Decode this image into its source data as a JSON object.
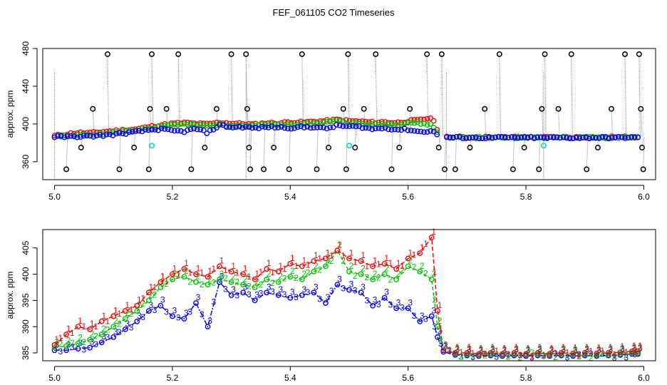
{
  "title": "FEF_061105  CO2 Timeseries",
  "colors": {
    "series1": "#ff0000",
    "series2": "#00c000",
    "series3": "#0000ff",
    "black": "#000000",
    "cyan": "#00d8d8",
    "trace": "#888888"
  },
  "chart_data": [
    {
      "type": "scatter",
      "name": "top-panel",
      "ylabel": "approx. ppm",
      "xlabel": "",
      "xlim": [
        4.98,
        6.02
      ],
      "ylim": [
        341,
        480
      ],
      "x_ticks": [
        5.0,
        5.2,
        5.4,
        5.6,
        5.8,
        6.0
      ],
      "x_tick_labels": [
        "5.0",
        "5.2",
        "5.4",
        "5.6",
        "5.8",
        "6.0"
      ],
      "y_ticks": [
        360,
        400,
        440,
        480
      ],
      "y_tick_labels": [
        "360",
        "400",
        "440",
        "480"
      ],
      "series": [
        {
          "name": "black-outliers",
          "color": "black",
          "x": [
            5.02,
            5.045,
            5.065,
            5.09,
            5.11,
            5.135,
            5.16,
            5.162,
            5.165,
            5.19,
            5.21,
            5.232,
            5.255,
            5.275,
            5.3,
            5.325,
            5.327,
            5.33,
            5.332,
            5.355,
            5.372,
            5.398,
            5.42,
            5.445,
            5.465,
            5.49,
            5.495,
            5.498,
            5.51,
            5.525,
            5.545,
            5.572,
            5.585,
            5.603,
            5.632,
            5.652,
            5.657,
            5.662,
            5.68,
            5.705,
            5.73,
            5.755,
            5.778,
            5.797,
            5.822,
            5.827,
            5.832,
            5.855,
            5.877,
            5.903,
            5.922,
            5.945,
            5.968,
            5.992,
            5.995,
            5.997,
            5.999
          ],
          "y": [
            352,
            375,
            416,
            474,
            352,
            375,
            352,
            416,
            474,
            416,
            474,
            352,
            375,
            416,
            474,
            474,
            416,
            375,
            352,
            352,
            375,
            352,
            474,
            352,
            375,
            416,
            352,
            474,
            375,
            416,
            474,
            352,
            375,
            416,
            474,
            375,
            474,
            352,
            352,
            375,
            416,
            474,
            352,
            375,
            352,
            416,
            474,
            416,
            474,
            352,
            375,
            416,
            474,
            474,
            416,
            375,
            352
          ]
        },
        {
          "name": "cyan-points",
          "color": "cyan",
          "x": [
            5.165,
            5.5,
            5.83
          ],
          "y": [
            377,
            377,
            377
          ]
        }
      ]
    },
    {
      "type": "line",
      "name": "bottom-panel",
      "ylabel": "approx. ppm",
      "xlabel": "",
      "xlim": [
        4.98,
        6.02
      ],
      "ylim": [
        383.5,
        408.5
      ],
      "x_ticks": [
        5.0,
        5.2,
        5.4,
        5.6,
        5.8,
        6.0
      ],
      "x_tick_labels": [
        "5.0",
        "5.2",
        "5.4",
        "5.6",
        "5.8",
        "6.0"
      ],
      "y_ticks": [
        385,
        390,
        395,
        400,
        405
      ],
      "y_tick_labels": [
        "385",
        "390",
        "395",
        "400",
        "405"
      ],
      "series": [
        {
          "name": "1",
          "label": "1",
          "color": "series1",
          "x": [
            5.0,
            5.02,
            5.04,
            5.06,
            5.08,
            5.1,
            5.12,
            5.14,
            5.16,
            5.18,
            5.2,
            5.22,
            5.24,
            5.26,
            5.28,
            5.3,
            5.32,
            5.34,
            5.36,
            5.38,
            5.4,
            5.42,
            5.44,
            5.46,
            5.48,
            5.5,
            5.52,
            5.54,
            5.56,
            5.58,
            5.6,
            5.62,
            5.64,
            5.65,
            5.66,
            5.68,
            5.7,
            5.72,
            5.74,
            5.76,
            5.78,
            5.8,
            5.82,
            5.84,
            5.86,
            5.88,
            5.9,
            5.92,
            5.94,
            5.96,
            5.98,
            5.99
          ],
          "y": [
            386.5,
            388.5,
            390.0,
            389.5,
            391.0,
            392.0,
            393.0,
            394.0,
            396.5,
            398.5,
            400.0,
            401.0,
            400.0,
            399.5,
            401.5,
            400.5,
            400.0,
            399.0,
            401.0,
            400.5,
            402.0,
            401.5,
            402.5,
            403.0,
            404.5,
            403.0,
            402.5,
            401.5,
            402.0,
            401.0,
            403.0,
            404.0,
            407.0,
            393.0,
            385.5,
            385.0,
            385.0,
            384.8,
            385.0,
            384.8,
            385.0,
            384.8,
            385.0,
            384.8,
            385.0,
            384.9,
            385.0,
            384.9,
            385.0,
            385.1,
            385.3,
            385.3
          ]
        },
        {
          "name": "2",
          "label": "2",
          "color": "series2",
          "x": [
            5.0,
            5.02,
            5.04,
            5.06,
            5.08,
            5.1,
            5.12,
            5.14,
            5.16,
            5.18,
            5.2,
            5.22,
            5.24,
            5.26,
            5.28,
            5.3,
            5.32,
            5.34,
            5.36,
            5.38,
            5.4,
            5.42,
            5.44,
            5.46,
            5.48,
            5.5,
            5.52,
            5.54,
            5.56,
            5.58,
            5.6,
            5.62,
            5.64,
            5.65,
            5.66,
            5.68,
            5.7,
            5.72,
            5.74,
            5.76,
            5.78,
            5.8,
            5.82,
            5.84,
            5.86,
            5.88,
            5.9,
            5.92,
            5.94,
            5.96,
            5.98,
            5.99
          ],
          "y": [
            386.0,
            386.3,
            386.8,
            387.5,
            388.5,
            390.0,
            391.5,
            393.0,
            395.0,
            397.5,
            399.0,
            399.5,
            398.5,
            398.0,
            399.0,
            398.5,
            398.0,
            397.5,
            399.0,
            398.5,
            399.5,
            399.0,
            400.5,
            401.5,
            404.5,
            400.5,
            400.0,
            399.0,
            400.0,
            399.0,
            401.5,
            400.5,
            399.0,
            390.0,
            385.5,
            384.8,
            384.7,
            384.6,
            384.7,
            384.6,
            384.7,
            384.6,
            384.7,
            384.6,
            384.7,
            384.6,
            384.7,
            384.6,
            384.7,
            384.8,
            385.0,
            385.0
          ]
        },
        {
          "name": "3",
          "label": "3",
          "color": "series3",
          "x": [
            5.0,
            5.02,
            5.04,
            5.06,
            5.08,
            5.1,
            5.12,
            5.14,
            5.16,
            5.18,
            5.2,
            5.22,
            5.24,
            5.26,
            5.28,
            5.3,
            5.32,
            5.34,
            5.36,
            5.38,
            5.4,
            5.42,
            5.44,
            5.46,
            5.48,
            5.5,
            5.52,
            5.54,
            5.56,
            5.58,
            5.6,
            5.62,
            5.64,
            5.65,
            5.66,
            5.68,
            5.7,
            5.72,
            5.74,
            5.76,
            5.78,
            5.8,
            5.82,
            5.84,
            5.86,
            5.88,
            5.9,
            5.92,
            5.94,
            5.96,
            5.98,
            5.99
          ],
          "y": [
            385.5,
            385.5,
            385.8,
            386.0,
            387.0,
            388.0,
            389.5,
            391.0,
            393.0,
            394.0,
            392.0,
            391.5,
            394.5,
            390.0,
            398.5,
            396.0,
            396.5,
            395.0,
            396.5,
            396.0,
            395.5,
            396.0,
            396.5,
            394.5,
            398.0,
            397.0,
            396.5,
            394.0,
            395.5,
            393.5,
            393.5,
            391.0,
            392.0,
            388.0,
            385.2,
            384.6,
            384.5,
            384.4,
            384.5,
            384.4,
            384.5,
            384.4,
            384.5,
            384.4,
            384.5,
            384.4,
            384.5,
            384.4,
            384.5,
            384.6,
            384.8,
            384.8
          ]
        }
      ]
    }
  ]
}
